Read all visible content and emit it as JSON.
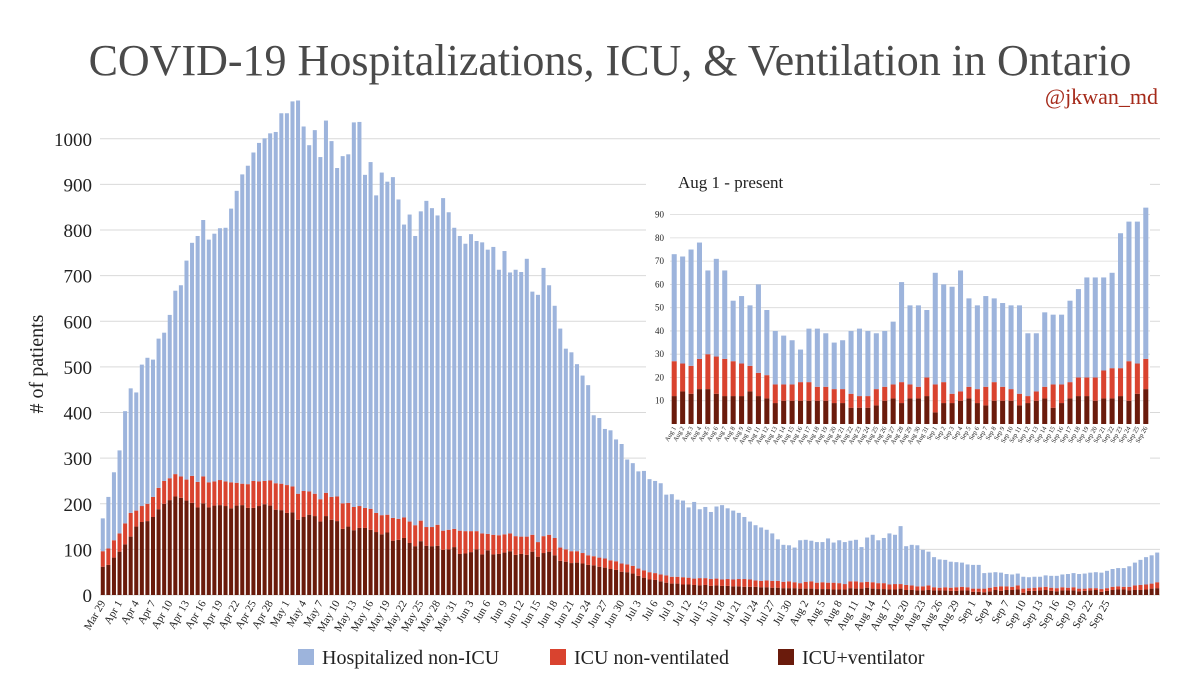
{
  "colors": {
    "hosp": "#9db4dc",
    "icu": "#d9432f",
    "vent": "#6a1b0c",
    "grid": "#d9d9d9",
    "title": "#4a4a4a",
    "handle": "#a52a1a",
    "text": "#222222"
  },
  "chart_data": [
    {
      "type": "bar",
      "stacked": true,
      "title": "COVID-19 Hospitalizations, ICU, & Ventilation in Ontario",
      "handle": "@jkwan_md",
      "ylabel": "# of patients",
      "xlabel": "",
      "ylim": [
        0,
        1050
      ],
      "yticks": [
        "0",
        "100",
        "200",
        "300",
        "400",
        "500",
        "600",
        "700",
        "800",
        "900",
        "1000"
      ],
      "grid": true,
      "legend_position": "bottom",
      "legend": [
        "Hospitalized non-ICU",
        "ICU non-ventilated",
        "ICU+ventilator"
      ],
      "start_date": "Mar 29",
      "tick_labels": [
        "Mar 29",
        "Apr 1",
        "Apr 4",
        "Apr 7",
        "Apr 10",
        "Apr 13",
        "Apr 16",
        "Apr 19",
        "Apr 22",
        "Apr 25",
        "Apr 28",
        "May 1",
        "May 4",
        "May 7",
        "May 10",
        "May 13",
        "May 16",
        "May 19",
        "May 22",
        "May 25",
        "May 28",
        "May 31",
        "Jun 3",
        "Jun 6",
        "Jun 9",
        "Jun 12",
        "Jun 15",
        "Jun 18",
        "Jun 21",
        "Jun 24",
        "Jun 27",
        "Jun 30",
        "Jul 3",
        "Jul 6",
        "Jul 9",
        "Jul 12",
        "Jul 15",
        "Jul 18",
        "Jul 21",
        "Jul 24",
        "Jul 27",
        "Jul 30",
        "Aug 2",
        "Aug 5",
        "Aug 8",
        "Aug 11",
        "Aug 14",
        "Aug 17",
        "Aug 20",
        "Aug 23",
        "Aug 26",
        "Aug 29",
        "Sep 1",
        "Sep 4",
        "Sep 7",
        "Sep 10",
        "Sep 13",
        "Sep 16",
        "Sep 19",
        "Sep 22",
        "Sep 25"
      ],
      "series": [
        {
          "name": "ICU+ventilator",
          "values": [
            62,
            66,
            82,
            95,
            111,
            128,
            150,
            160,
            162,
            171,
            188,
            200,
            208,
            216,
            213,
            207,
            202,
            192,
            201,
            192,
            196,
            197,
            195,
            190,
            196,
            197,
            191,
            191,
            195,
            199,
            196,
            187,
            186,
            180,
            181,
            165,
            171,
            176,
            173,
            161,
            173,
            165,
            162,
            145,
            150,
            142,
            147,
            147,
            143,
            138,
            133,
            137,
            119,
            121,
            125,
            114,
            107,
            118,
            108,
            107,
            108,
            99,
            100,
            105,
            90,
            91,
            94,
            100,
            89,
            98,
            89,
            90,
            93,
            96,
            88,
            90,
            88,
            95,
            84,
            92,
            95,
            87,
            75,
            73,
            70,
            71,
            69,
            66,
            65,
            62,
            60,
            57,
            55,
            51,
            50,
            47,
            42,
            38,
            34,
            33,
            30,
            27,
            25,
            25,
            23,
            23,
            22,
            21,
            22,
            20,
            21,
            20,
            20,
            19,
            19,
            18,
            18,
            18,
            17,
            17,
            16,
            16,
            15,
            15,
            15,
            14,
            14,
            14,
            13,
            13,
            13,
            12,
            12,
            12,
            15,
            14,
            14,
            16,
            14,
            13,
            13,
            12,
            12,
            14,
            11,
            11,
            10,
            10,
            11,
            10,
            10,
            10,
            9,
            9,
            10,
            10,
            7,
            7,
            6,
            8,
            11,
            9,
            11,
            11,
            12,
            5,
            9,
            9,
            10,
            11,
            9,
            8,
            10,
            10,
            10,
            8,
            9,
            10,
            11,
            7,
            9,
            11,
            12,
            12,
            10,
            11,
            11,
            12,
            14,
            15
          ]
        },
        {
          "name": "ICU non-ventilated",
          "values": [
            34,
            36,
            38,
            40,
            46,
            52,
            35,
            35,
            38,
            44,
            47,
            50,
            48,
            49,
            47,
            46,
            59,
            56,
            59,
            55,
            53,
            55,
            54,
            57,
            50,
            47,
            52,
            59,
            54,
            51,
            55,
            58,
            58,
            61,
            57,
            57,
            57,
            51,
            49,
            49,
            51,
            50,
            54,
            56,
            52,
            51,
            48,
            44,
            46,
            42,
            42,
            39,
            50,
            46,
            45,
            47,
            46,
            45,
            41,
            42,
            46,
            42,
            43,
            40,
            51,
            49,
            46,
            40,
            46,
            36,
            43,
            41,
            40,
            39,
            41,
            38,
            40,
            37,
            32,
            37,
            37,
            38,
            29,
            27,
            26,
            25,
            23,
            21,
            20,
            20,
            20,
            19,
            19,
            18,
            17,
            17,
            16,
            16,
            16,
            15,
            15,
            16,
            15,
            15,
            16,
            15,
            14,
            16,
            15,
            15,
            15,
            14,
            15,
            15,
            16,
            17,
            16,
            14,
            14,
            15,
            15,
            15,
            14,
            15,
            13,
            12,
            15,
            16,
            14,
            15,
            14,
            15,
            14,
            12,
            15,
            16,
            14,
            13,
            14,
            13,
            13,
            11,
            12,
            10,
            11,
            10,
            9,
            9,
            10,
            7,
            6,
            7,
            7,
            8,
            8,
            7,
            7,
            7,
            8,
            8,
            7,
            10,
            8,
            7,
            9,
            9,
            6,
            7,
            7,
            7,
            7,
            7,
            7,
            6,
            7,
            6,
            5,
            5,
            4,
            6,
            6,
            7,
            7,
            6,
            8,
            10,
            11,
            11,
            11,
            13
          ]
        },
        {
          "name": "Hospitalized non-ICU",
          "values": [
            72,
            113,
            149,
            182,
            246,
            273,
            259,
            310,
            320,
            301,
            327,
            325,
            358,
            402,
            419,
            480,
            511,
            539,
            562,
            532,
            543,
            552,
            556,
            600,
            640,
            678,
            698,
            720,
            742,
            751,
            761,
            770,
            812,
            815,
            844,
            862,
            799,
            759,
            797,
            750,
            816,
            780,
            720,
            761,
            764,
            843,
            842,
            730,
            760,
            696,
            751,
            730,
            747,
            700,
            642,
            673,
            634,
            678,
            715,
            699,
            678,
            729,
            696,
            660,
            646,
            630,
            651,
            636,
            638,
            623,
            631,
            582,
            621,
            572,
            584,
            580,
            609,
            533,
            542,
            588,
            547,
            509,
            480,
            440,
            436,
            410,
            389,
            373,
            309,
            306,
            284,
            285,
            267,
            262,
            230,
            225,
            213,
            218,
            204,
            202,
            200,
            177,
            181,
            169,
            168,
            154,
            168,
            151,
            156,
            147,
            158,
            163,
            155,
            151,
            145,
            136,
            127,
            121,
            117,
            111,
            104,
            91,
            81,
            79,
            76,
            94,
            92,
            89,
            89,
            88,
            97,
            88,
            94,
            92,
            89,
            91,
            77,
            97,
            104,
            94,
            99,
            112,
            108,
            127,
            85,
            89,
            90,
            80,
            74,
            66,
            62,
            60,
            57,
            55,
            53,
            50,
            52,
            52,
            34,
            33,
            32,
            30,
            27,
            27,
            26,
            26,
            24,
            24,
            23,
            25,
            26,
            27,
            28,
            30,
            31,
            32,
            33,
            34,
            35,
            36,
            38,
            39,
            40,
            41,
            45,
            50,
            55,
            60,
            62,
            65
          ]
        }
      ]
    },
    {
      "type": "bar",
      "stacked": true,
      "title": "Aug 1 - present",
      "ylim": [
        0,
        95
      ],
      "yticks": [
        "10",
        "20",
        "30",
        "40",
        "50",
        "60",
        "70",
        "80",
        "90"
      ],
      "grid": true,
      "categories": [
        "Aug 1",
        "Aug 2",
        "Aug 3",
        "Aug 4",
        "Aug 5",
        "Aug 6",
        "Aug 7",
        "Aug 8",
        "Aug 9",
        "Aug 10",
        "Aug 11",
        "Aug 12",
        "Aug 13",
        "Aug 14",
        "Aug 15",
        "Aug 16",
        "Aug 17",
        "Aug 18",
        "Aug 19",
        "Aug 20",
        "Aug 21",
        "Aug 22",
        "Aug 23",
        "Aug 24",
        "Aug 25",
        "Aug 26",
        "Aug 27",
        "Aug 28",
        "Aug 29",
        "Aug 30",
        "Aug 31",
        "Sep 1",
        "Sep 2",
        "Sep 3",
        "Sep 4",
        "Sep 5",
        "Sep 6",
        "Sep 7",
        "Sep 8",
        "Sep 9",
        "Sep 10",
        "Sep 11",
        "Sep 12",
        "Sep 13",
        "Sep 14",
        "Sep 15",
        "Sep 16",
        "Sep 17",
        "Sep 18",
        "Sep 19",
        "Sep 20",
        "Sep 21",
        "Sep 22",
        "Sep 23",
        "Sep 24",
        "Sep 25",
        "Sep 26"
      ],
      "series": [
        {
          "name": "ICU+ventilator",
          "values": [
            12,
            14,
            13,
            15,
            15,
            13,
            12,
            12,
            12,
            14,
            12,
            11,
            9,
            10,
            10,
            10,
            10,
            10,
            10,
            9,
            9,
            7,
            7,
            7,
            8,
            10,
            11,
            9,
            11,
            11,
            12,
            5,
            9,
            9,
            10,
            11,
            9,
            8,
            10,
            10,
            10,
            8,
            9,
            10,
            11,
            7,
            9,
            11,
            12,
            12,
            10,
            11,
            11,
            12,
            10,
            13,
            15
          ]
        },
        {
          "name": "ICU non-ventilated",
          "values": [
            15,
            12,
            12,
            13,
            15,
            16,
            16,
            15,
            14,
            11,
            10,
            10,
            8,
            7,
            7,
            8,
            8,
            6,
            6,
            6,
            6,
            6,
            5,
            5,
            7,
            6,
            6,
            9,
            6,
            5,
            8,
            12,
            9,
            4,
            4,
            5,
            6,
            8,
            8,
            6,
            5,
            5,
            3,
            4,
            5,
            10,
            8,
            7,
            8,
            8,
            10,
            12,
            13,
            12,
            17,
            13,
            13
          ]
        },
        {
          "name": "Hospitalized non-ICU",
          "values": [
            46,
            46,
            50,
            50,
            36,
            42,
            38,
            26,
            29,
            26,
            38,
            28,
            23,
            21,
            19,
            14,
            23,
            25,
            23,
            20,
            21,
            27,
            29,
            28,
            24,
            24,
            27,
            43,
            34,
            35,
            29,
            48,
            42,
            46,
            52,
            38,
            36,
            39,
            36,
            36,
            36,
            38,
            27,
            25,
            32,
            30,
            30,
            35,
            38,
            43,
            43,
            40,
            41,
            58,
            60,
            61,
            65
          ]
        }
      ]
    }
  ]
}
